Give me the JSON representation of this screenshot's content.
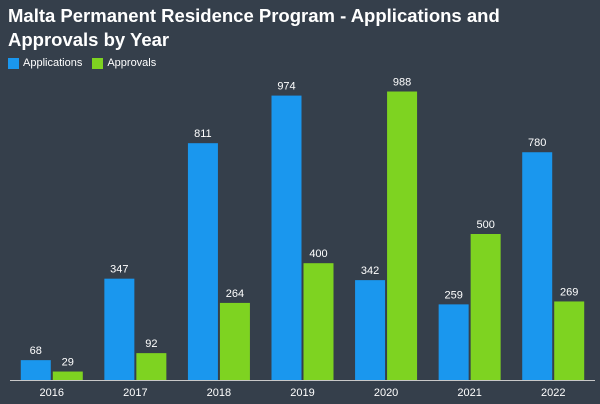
{
  "chart_data": {
    "type": "bar",
    "title": "Malta Permanent Residence Program - Applications and Approvals by Year",
    "categories": [
      "2016",
      "2017",
      "2018",
      "2019",
      "2020",
      "2021",
      "2022"
    ],
    "series": [
      {
        "name": "Applications",
        "values": [
          68,
          347,
          811,
          974,
          342,
          259,
          780
        ],
        "color": "#1a97ee"
      },
      {
        "name": "Approvals",
        "values": [
          29,
          92,
          264,
          400,
          988,
          500,
          269
        ],
        "color": "#7ed321"
      }
    ],
    "ylim": [
      0,
      1000
    ],
    "grid": false,
    "legend": "top-left",
    "axis_color": "#c8c8c8"
  }
}
